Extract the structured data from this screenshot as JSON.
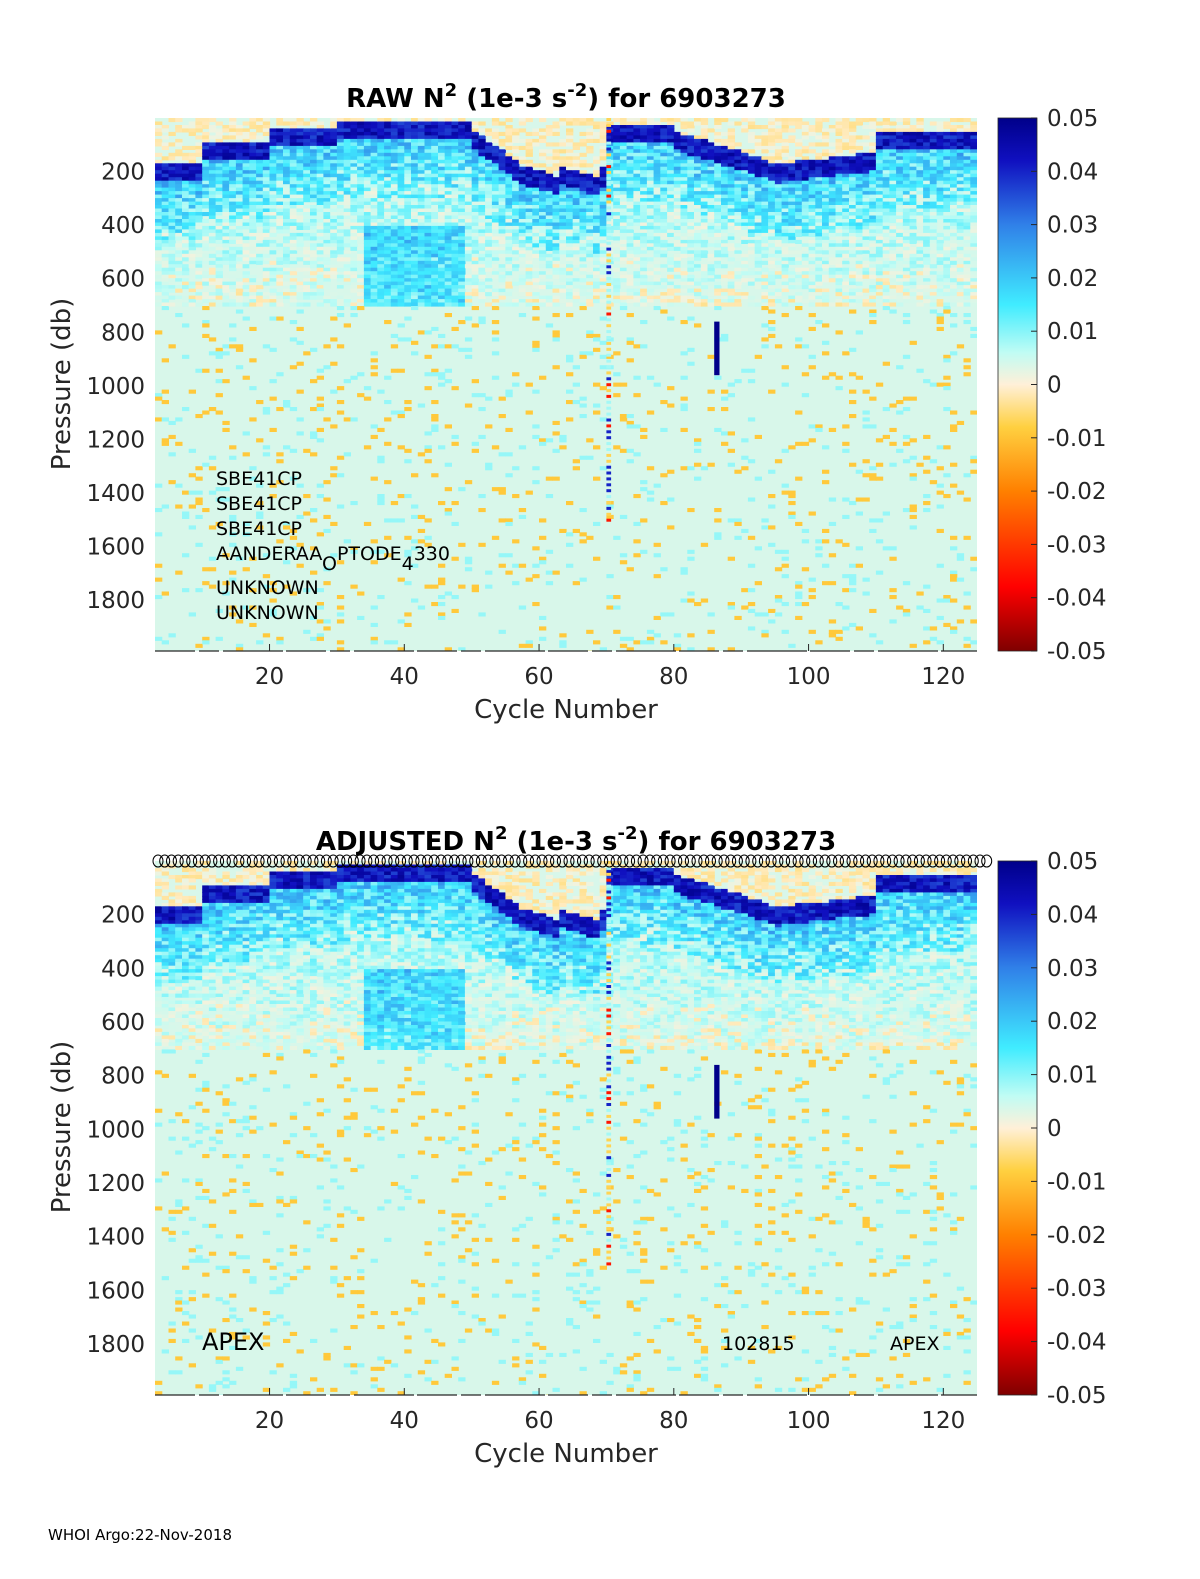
{
  "chart_data": [
    {
      "type": "heatmap",
      "title_prefix": "RAW N",
      "title_sup": "2",
      "title_mid": " (1e-3 s",
      "title_sup2": "-2",
      "title_suffix": ") for 6903273",
      "xlabel": "Cycle Number",
      "ylabel": "Pressure (db)",
      "xlim": [
        3,
        125
      ],
      "ylim": [
        1990,
        0
      ],
      "xticks": [
        "20",
        "40",
        "60",
        "80",
        "100",
        "120"
      ],
      "yticks": [
        "200",
        "400",
        "600",
        "800",
        "1000",
        "1200",
        "1400",
        "1600",
        "1800"
      ],
      "colorbar": {
        "range": [
          -0.05,
          0.05
        ],
        "ticks": [
          "0.05",
          "0.04",
          "0.03",
          "0.02",
          "0.01",
          "0",
          "-0.01",
          "-0.02",
          "-0.03",
          "-0.04",
          "-0.05"
        ]
      },
      "sensor_labels": [
        "SBE41CP",
        "SBE41CP",
        "SBE41CP",
        "AANDERAA_OPTODE_4330",
        "UNKNOWN",
        "UNKNOWN"
      ],
      "sensor_optode": {
        "a": "AANDERAA",
        "b": "O",
        "c": "PTODE",
        "d": "4",
        "e": "330"
      },
      "show_qc_circles": false
    },
    {
      "type": "heatmap",
      "title_prefix": "ADJUSTED N",
      "title_sup": "2",
      "title_mid": " (1e-3 s",
      "title_sup2": "-2",
      "title_suffix": ") for 6903273",
      "xlabel": "Cycle Number",
      "ylabel": "Pressure (db)",
      "xlim": [
        3,
        125
      ],
      "ylim": [
        1990,
        0
      ],
      "xticks": [
        "20",
        "40",
        "60",
        "80",
        "100",
        "120"
      ],
      "yticks": [
        "200",
        "400",
        "600",
        "800",
        "1000",
        "1200",
        "1400",
        "1600",
        "1800"
      ],
      "colorbar": {
        "range": [
          -0.05,
          0.05
        ],
        "ticks": [
          "0.05",
          "0.04",
          "0.03",
          "0.02",
          "0.01",
          "0",
          "-0.01",
          "-0.02",
          "-0.03",
          "-0.04",
          "-0.05"
        ]
      },
      "annotations": [
        "APEX",
        "102815",
        "APEX"
      ],
      "show_qc_circles": true
    }
  ],
  "footer": "WHOI Argo:22-Nov-2018"
}
